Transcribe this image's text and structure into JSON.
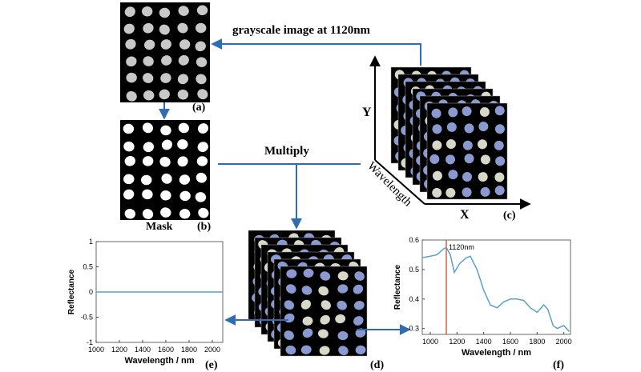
{
  "top_arrow_label": "grayscale image at 1120nm",
  "multiply_label": "Multiply",
  "mask_label": "Mask",
  "axes": {
    "y": "Y",
    "x": "X",
    "wavelength": "Wavelength"
  },
  "panel_labels": {
    "a": "(a)",
    "b": "(b)",
    "c": "(c)",
    "d": "(d)",
    "e": "(e)",
    "f": "(f)"
  },
  "chart_e": {
    "type": "line",
    "xlabel": "Wavelength / nm",
    "ylabel": "Reflectance",
    "x": [
      1000,
      2090
    ],
    "values": [
      0,
      0
    ],
    "color": "#5aa0c8",
    "xlim": [
      1000,
      2090
    ],
    "ylim": [
      -1,
      1
    ],
    "xticks": [
      1000,
      1200,
      1400,
      1600,
      1800,
      2000
    ],
    "yticks": [
      -1,
      -0.5,
      0,
      0.5,
      1
    ]
  },
  "chart_f": {
    "type": "line",
    "xlabel": "Wavelength / nm",
    "ylabel": "Reflectance",
    "x": [
      940,
      1000,
      1050,
      1100,
      1120,
      1150,
      1180,
      1220,
      1270,
      1300,
      1350,
      1400,
      1450,
      1500,
      1550,
      1600,
      1650,
      1700,
      1750,
      1800,
      1850,
      1880,
      1920,
      1950,
      2000,
      2040
    ],
    "values": [
      0.54,
      0.545,
      0.55,
      0.57,
      0.575,
      0.55,
      0.49,
      0.52,
      0.54,
      0.545,
      0.5,
      0.43,
      0.38,
      0.37,
      0.39,
      0.4,
      0.4,
      0.395,
      0.37,
      0.355,
      0.38,
      0.365,
      0.31,
      0.3,
      0.31,
      0.29
    ],
    "color": "#5aa0c8",
    "marker": {
      "value": 1120,
      "label": "1120nm",
      "color": "#c0392b"
    },
    "xlim": [
      940,
      2050
    ],
    "ylim": [
      0.28,
      0.6
    ],
    "xticks": [
      1000,
      1200,
      1400,
      1600,
      1800,
      2000
    ],
    "yticks": [
      0.3,
      0.4,
      0.5,
      0.6
    ]
  }
}
